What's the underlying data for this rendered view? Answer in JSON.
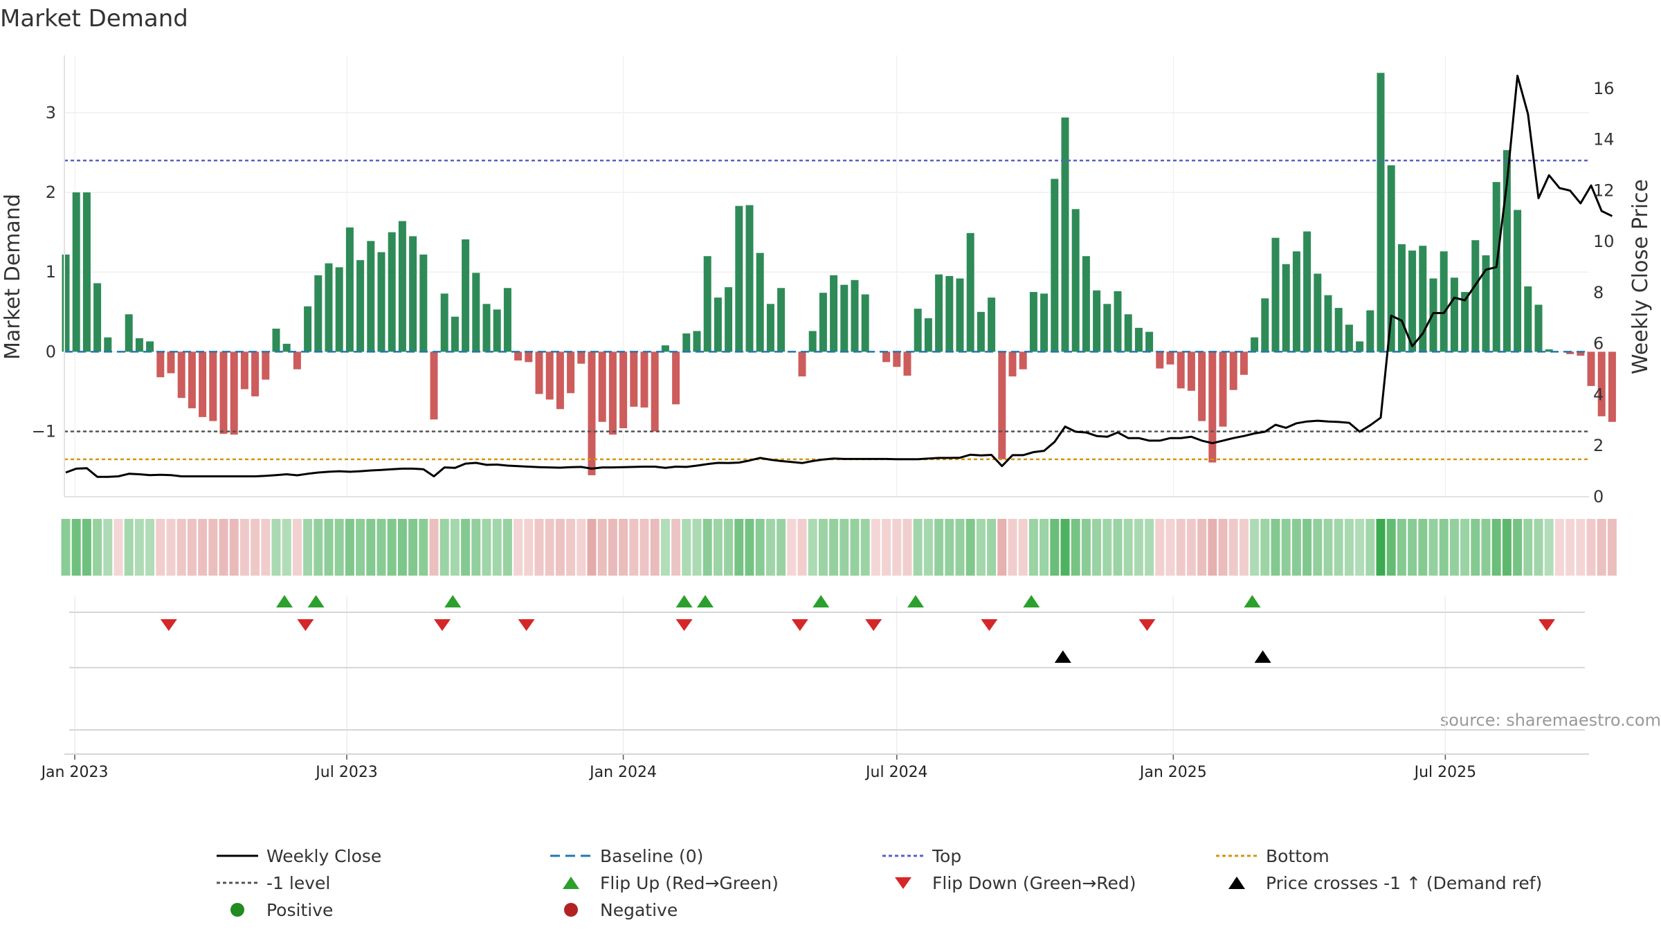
{
  "chart_data": {
    "type": "bar",
    "title": "Market Demand",
    "ylabel": "Market Demand",
    "y2label": "Weekly Close Price",
    "ylim": [
      -1.82,
      3.72
    ],
    "y2lim": [
      0,
      17.3
    ],
    "yticks": [
      "−1",
      "0",
      "1",
      "2",
      "3"
    ],
    "y2ticks": [
      "0",
      "2",
      "4",
      "6",
      "8",
      "10",
      "12",
      "14",
      "16"
    ],
    "xticks": [
      "Jan 2023",
      "Jul 2023",
      "Jan 2024",
      "Jul 2024",
      "Jan 2025",
      "Jul 2025"
    ],
    "start_week": "2022-12-26",
    "weeks": 145,
    "reference_lines": {
      "baseline": 0,
      "top": 2.4,
      "minus_one": -1,
      "bottom": -1.35
    },
    "demand": [
      1.22,
      2.0,
      2.0,
      0.86,
      0.18,
      0.0,
      0.47,
      0.17,
      0.13,
      -0.32,
      -0.27,
      -0.58,
      -0.71,
      -0.82,
      -0.87,
      -1.03,
      -1.04,
      -0.47,
      -0.56,
      -0.35,
      0.29,
      0.1,
      -0.22,
      0.57,
      0.96,
      1.11,
      1.06,
      1.56,
      1.15,
      1.39,
      1.25,
      1.5,
      1.64,
      1.45,
      1.22,
      -0.85,
      0.73,
      0.44,
      1.41,
      0.99,
      0.6,
      0.53,
      0.8,
      -0.11,
      -0.13,
      -0.53,
      -0.6,
      -0.72,
      -0.52,
      -0.15,
      -1.55,
      -0.88,
      -1.04,
      -0.96,
      -0.69,
      -0.7,
      -1.0,
      0.08,
      -0.66,
      0.23,
      0.26,
      1.2,
      0.68,
      0.81,
      1.83,
      1.84,
      1.24,
      0.6,
      0.8,
      0.0,
      -0.31,
      0.26,
      0.74,
      0.96,
      0.84,
      0.9,
      0.72,
      0.0,
      -0.13,
      -0.19,
      -0.3,
      0.54,
      0.42,
      0.97,
      0.95,
      0.92,
      1.49,
      0.5,
      0.68,
      -1.35,
      -0.31,
      -0.22,
      0.75,
      0.73,
      2.17,
      2.94,
      1.79,
      1.2,
      0.77,
      0.6,
      0.76,
      0.47,
      0.3,
      0.25,
      -0.21,
      -0.16,
      -0.46,
      -0.49,
      -0.87,
      -1.39,
      -0.94,
      -0.48,
      -0.29,
      0.18,
      0.67,
      1.43,
      1.1,
      1.26,
      1.51,
      0.98,
      0.71,
      0.55,
      0.34,
      0.13,
      0.52,
      3.5,
      2.34,
      1.35,
      1.27,
      1.33,
      0.92,
      1.26,
      0.93,
      0.75,
      1.4,
      1.21,
      2.13,
      2.53,
      1.78,
      0.82,
      0.59,
      0.03,
      0.0,
      -0.03,
      -0.05,
      -0.43,
      -0.81,
      -0.88
    ],
    "close": [
      0.95,
      1.1,
      1.12,
      0.78,
      0.78,
      0.8,
      0.9,
      0.88,
      0.85,
      0.86,
      0.85,
      0.8,
      0.8,
      0.8,
      0.8,
      0.8,
      0.8,
      0.8,
      0.8,
      0.82,
      0.85,
      0.88,
      0.84,
      0.9,
      0.95,
      0.98,
      1.0,
      0.98,
      1.0,
      1.03,
      1.05,
      1.08,
      1.1,
      1.1,
      1.08,
      0.8,
      1.15,
      1.13,
      1.3,
      1.33,
      1.25,
      1.26,
      1.22,
      1.2,
      1.18,
      1.16,
      1.15,
      1.14,
      1.16,
      1.17,
      1.1,
      1.15,
      1.15,
      1.16,
      1.17,
      1.18,
      1.18,
      1.13,
      1.18,
      1.17,
      1.22,
      1.28,
      1.33,
      1.32,
      1.34,
      1.42,
      1.52,
      1.45,
      1.4,
      1.36,
      1.32,
      1.4,
      1.46,
      1.5,
      1.48,
      1.48,
      1.48,
      1.48,
      1.48,
      1.47,
      1.47,
      1.47,
      1.5,
      1.52,
      1.52,
      1.53,
      1.65,
      1.62,
      1.64,
      1.2,
      1.63,
      1.63,
      1.75,
      1.8,
      2.15,
      2.75,
      2.55,
      2.52,
      2.38,
      2.35,
      2.52,
      2.3,
      2.3,
      2.2,
      2.2,
      2.3,
      2.3,
      2.35,
      2.2,
      2.1,
      2.2,
      2.3,
      2.38,
      2.48,
      2.55,
      2.82,
      2.7,
      2.88,
      2.95,
      2.98,
      2.95,
      2.93,
      2.9,
      2.55,
      2.8,
      3.1,
      7.1,
      6.9,
      5.9,
      6.4,
      7.2,
      7.2,
      7.8,
      7.7,
      8.3,
      8.9,
      9.0,
      12.3,
      16.5,
      15.0,
      11.7,
      12.6,
      12.1,
      12.0,
      11.5,
      12.2,
      11.2,
      11.0
    ],
    "flip_up_weeks": [
      20,
      23,
      36,
      58,
      60,
      71,
      80,
      91,
      112
    ],
    "flip_down_weeks": [
      9,
      22,
      35,
      43,
      58,
      69,
      76,
      87,
      102,
      140
    ],
    "cross_weeks": [
      94,
      113
    ]
  },
  "legend": [
    {
      "label": "Weekly Close",
      "style": "line-solid",
      "color": "#000000"
    },
    {
      "label": "Baseline (0)",
      "style": "line-dashed",
      "color": "#1f77b4"
    },
    {
      "label": "Top",
      "style": "line-dotted",
      "color": "#5b5fc7"
    },
    {
      "label": "Bottom",
      "style": "line-dotted",
      "color": "#d4950a"
    },
    {
      "label": "-1 level",
      "style": "line-dotted",
      "color": "#555555"
    },
    {
      "label": "Flip Up (Red→Green)",
      "style": "tri-up",
      "color": "#2ca02c"
    },
    {
      "label": "Flip Down (Green→Red)",
      "style": "tri-down",
      "color": "#d62728"
    },
    {
      "label": "Price crosses -1 ↑ (Demand ref)",
      "style": "tri-up",
      "color": "#000000"
    },
    {
      "label": "Positive",
      "style": "dot",
      "color": "#228b22"
    },
    {
      "label": "Negative",
      "style": "dot",
      "color": "#b22222"
    }
  ],
  "source": "source: sharemaestro.com",
  "colors": {
    "positive": "#2e8b57",
    "negative": "#cd5c5c"
  }
}
